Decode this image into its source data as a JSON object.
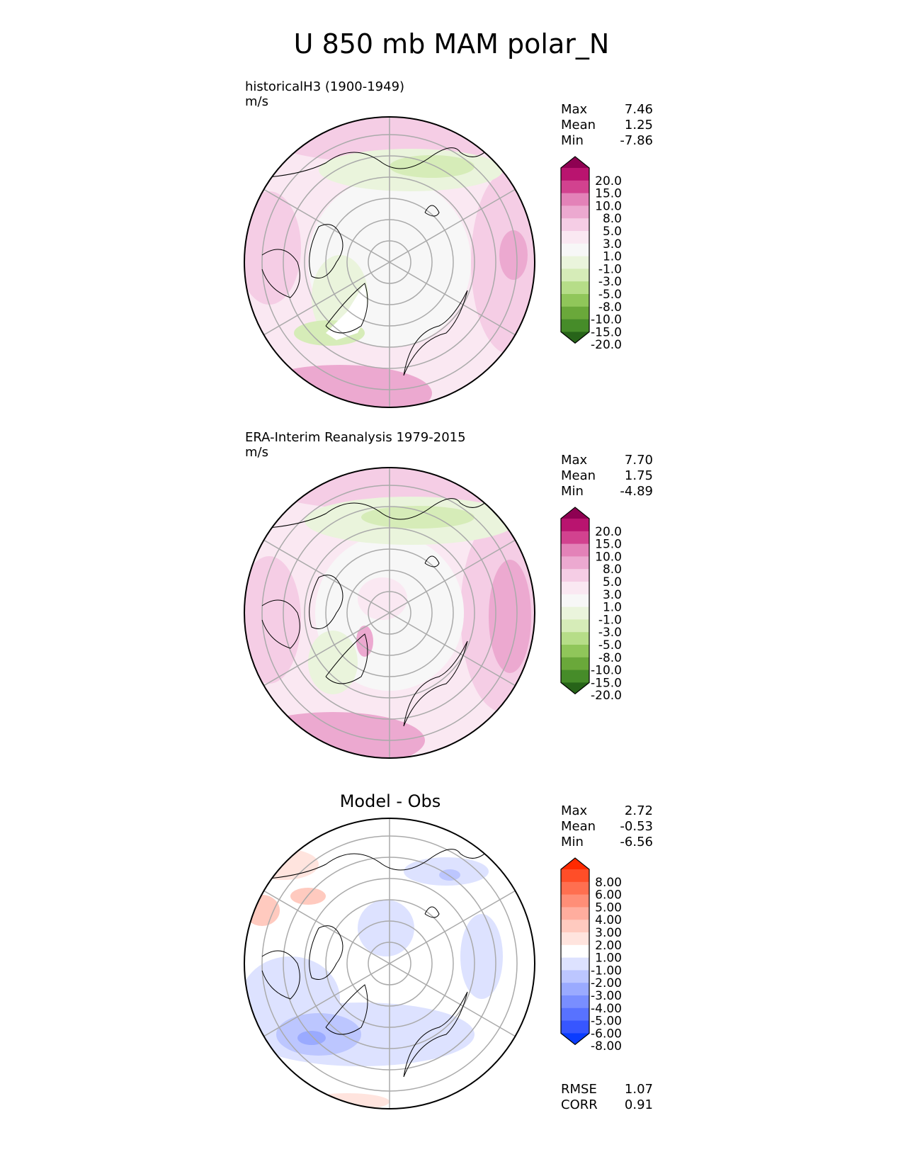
{
  "title": "U 850 mb MAM polar_N",
  "panels": [
    {
      "title_line1": "historicalH3 (1900-1949)",
      "title_line2": "m/s",
      "stats": [
        {
          "label": "Max",
          "value": "7.46"
        },
        {
          "label": "Mean",
          "value": "1.25"
        },
        {
          "label": "Min",
          "value": "-7.86"
        }
      ],
      "colorbar": {
        "labels": [
          "20.0",
          "15.0",
          "10.0",
          "8.0",
          "5.0",
          "3.0",
          "1.0",
          "-1.0",
          "-3.0",
          "-5.0",
          "-8.0",
          "-10.0",
          "-15.0",
          "-20.0"
        ],
        "colors": [
          "#8e0152",
          "#b9146f",
          "#d2428f",
          "#e382b8",
          "#eca9d0",
          "#f5cde5",
          "#fae8f2",
          "#f7f7f7",
          "#eaf4dc",
          "#d6ecb8",
          "#b6dd88",
          "#90c65a",
          "#6aa83a",
          "#468c29",
          "#276419"
        ]
      }
    },
    {
      "title_line1": "ERA-Interim Reanalysis 1979-2015",
      "title_line2": "m/s",
      "stats": [
        {
          "label": "Max",
          "value": "7.70"
        },
        {
          "label": "Mean",
          "value": "1.75"
        },
        {
          "label": "Min",
          "value": "-4.89"
        }
      ],
      "colorbar": {
        "labels": [
          "20.0",
          "15.0",
          "10.0",
          "8.0",
          "5.0",
          "3.0",
          "1.0",
          "-1.0",
          "-3.0",
          "-5.0",
          "-8.0",
          "-10.0",
          "-15.0",
          "-20.0"
        ],
        "colors": [
          "#8e0152",
          "#b9146f",
          "#d2428f",
          "#e382b8",
          "#eca9d0",
          "#f5cde5",
          "#fae8f2",
          "#f7f7f7",
          "#eaf4dc",
          "#d6ecb8",
          "#b6dd88",
          "#90c65a",
          "#6aa83a",
          "#468c29",
          "#276419"
        ]
      }
    },
    {
      "title": "Model - Obs",
      "stats": [
        {
          "label": "Max",
          "value": "2.72"
        },
        {
          "label": "Mean",
          "value": "-0.53"
        },
        {
          "label": "Min",
          "value": "-6.56"
        }
      ],
      "colorbar": {
        "labels": [
          "8.00",
          "6.00",
          "5.00",
          "4.00",
          "3.00",
          "2.00",
          "1.00",
          "-1.00",
          "-2.00",
          "-3.00",
          "-4.00",
          "-5.00",
          "-6.00",
          "-8.00"
        ],
        "colors": [
          "#ff2a00",
          "#ff4e28",
          "#ff6f50",
          "#ff8e77",
          "#ffad9e",
          "#ffcabf",
          "#ffe4de",
          "#ffffff",
          "#dde2ff",
          "#bcc6ff",
          "#9aaaff",
          "#798eff",
          "#5872ff",
          "#3756ff",
          "#0a3cff"
        ]
      },
      "metrics": [
        {
          "label": "RMSE",
          "value": "1.07"
        },
        {
          "label": "CORR",
          "value": "0.91"
        }
      ]
    }
  ]
}
